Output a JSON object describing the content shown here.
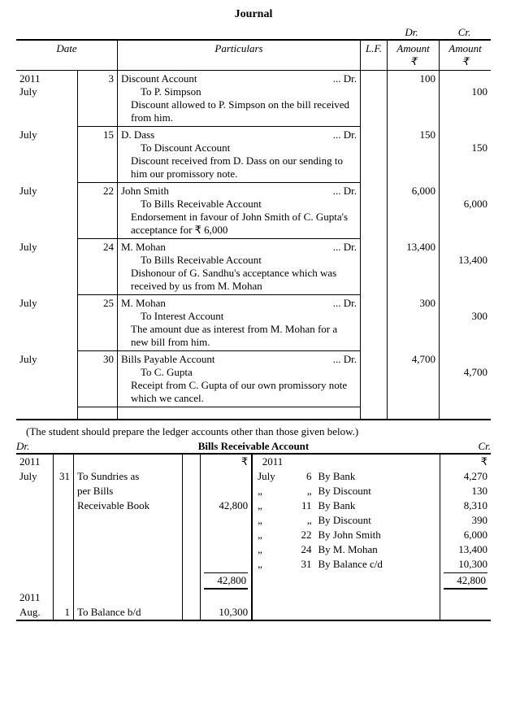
{
  "title": "Journal",
  "dr_label": "Dr.",
  "cr_label": "Cr.",
  "headers": {
    "date": "Date",
    "particulars": "Particulars",
    "lf": "L.F.",
    "amount": "Amount",
    "rupee": "₹"
  },
  "year_month": "2011\nJuly",
  "entries": [
    {
      "month": "",
      "day": "3",
      "debit": "Discount Account",
      "credit": "To P. Simpson",
      "narration": "Discount allowed to P. Simpson on the bill received from him.",
      "dr_amt": "100",
      "cr_amt": "100"
    },
    {
      "month": "July",
      "day": "15",
      "debit": "D. Dass",
      "credit": "To Discount Account",
      "narration": "Discount received from D. Dass on our sending to him our promissory note.",
      "dr_amt": "150",
      "cr_amt": "150"
    },
    {
      "month": "July",
      "day": "22",
      "debit": "John Smith",
      "credit": "To Bills Receivable Account",
      "narration": "Endorsement in favour of John Smith of C. Gupta's acceptance for ₹ 6,000",
      "dr_amt": "6,000",
      "cr_amt": "6,000"
    },
    {
      "month": "July",
      "day": "24",
      "debit": "M. Mohan",
      "credit": "To Bills Receivable Account",
      "narration": "Dishonour of G. Sandhu's acceptance which was received by us from M. Mohan",
      "dr_amt": "13,400",
      "cr_amt": "13,400"
    },
    {
      "month": "July",
      "day": "25",
      "debit": "M. Mohan",
      "credit": "To Interest Account",
      "narration": "The amount due as interest from M. Mohan for a new bill from him.",
      "dr_amt": "300",
      "cr_amt": "300"
    },
    {
      "month": "July",
      "day": "30",
      "debit": "Bills Payable Account",
      "credit": "To C. Gupta",
      "narration": "Receipt from C. Gupta of our own promissory note which we cancel.",
      "dr_amt": "4,700",
      "cr_amt": "4,700"
    }
  ],
  "dots_dr": "...     Dr.",
  "note": "(The student should prepare the ledger accounts other than those given below.)",
  "ledger": {
    "title": "Bills Receivable Account",
    "dr": "Dr.",
    "cr": "Cr.",
    "rupee": "₹",
    "left": {
      "year_month": "2011\nJuly",
      "day": "31",
      "part": "To Sundries as per Bills Receivable Book",
      "amount": "42,800",
      "total": "42,800",
      "bf_year": "2011",
      "bf_month": "Aug.",
      "bf_day": "1",
      "bf_part": "To Balance b/d",
      "bf_amt": "10,300"
    },
    "right": {
      "year": "2011",
      "rows": [
        {
          "m": "July",
          "d": "6",
          "p": "By Bank",
          "a": "4,270"
        },
        {
          "m": "„",
          "d": "„",
          "p": "By Discount",
          "a": "130"
        },
        {
          "m": "„",
          "d": "11",
          "p": "By Bank",
          "a": "8,310"
        },
        {
          "m": "„",
          "d": "„",
          "p": "By Discount",
          "a": "390"
        },
        {
          "m": "„",
          "d": "22",
          "p": "By John Smith",
          "a": "6,000"
        },
        {
          "m": "„",
          "d": "24",
          "p": "By M. Mohan",
          "a": "13,400"
        },
        {
          "m": "„",
          "d": "31",
          "p": "By Balance c/d",
          "a": "10,300"
        }
      ],
      "total": "42,800"
    }
  }
}
